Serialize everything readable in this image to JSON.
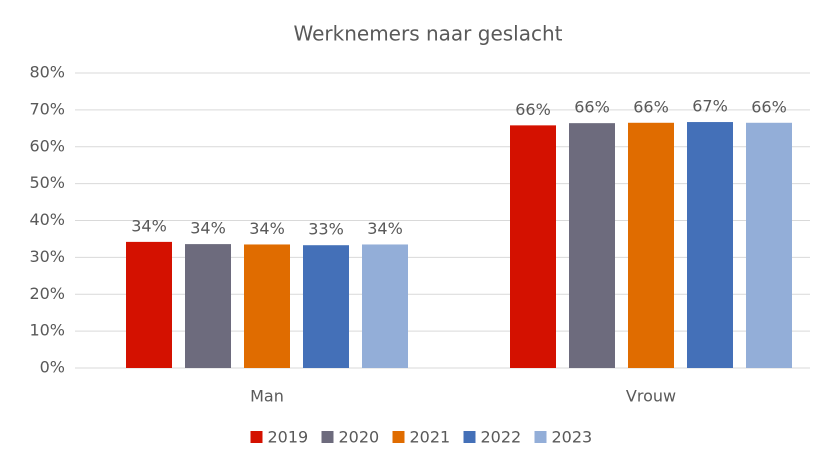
{
  "chart_data": {
    "type": "bar",
    "title": "Werknemers naar geslacht",
    "categories": [
      "Man",
      "Vrouw"
    ],
    "series": [
      {
        "name": "2019",
        "color": "#d41100",
        "values": [
          34.2,
          65.8
        ],
        "value_labels": [
          "34%",
          "66%"
        ]
      },
      {
        "name": "2020",
        "color": "#6d6b7d",
        "values": [
          33.6,
          66.4
        ],
        "value_labels": [
          "34%",
          "66%"
        ]
      },
      {
        "name": "2021",
        "color": "#e06c00",
        "values": [
          33.5,
          66.5
        ],
        "value_labels": [
          "34%",
          "66%"
        ]
      },
      {
        "name": "2022",
        "color": "#4470b8",
        "values": [
          33.3,
          66.7
        ],
        "value_labels": [
          "33%",
          "67%"
        ]
      },
      {
        "name": "2023",
        "color": "#93aed8",
        "values": [
          33.5,
          66.5
        ],
        "value_labels": [
          "34%",
          "66%"
        ]
      }
    ],
    "ylim": [
      0,
      80
    ],
    "yticks": [
      {
        "value": 0,
        "label": "0%"
      },
      {
        "value": 10,
        "label": "10%"
      },
      {
        "value": 20,
        "label": "20%"
      },
      {
        "value": 30,
        "label": "30%"
      },
      {
        "value": 40,
        "label": "40%"
      },
      {
        "value": 50,
        "label": "50%"
      },
      {
        "value": 60,
        "label": "60%"
      },
      {
        "value": 70,
        "label": "70%"
      },
      {
        "value": 80,
        "label": "80%"
      }
    ],
    "grid": true,
    "legend": "bottom"
  }
}
